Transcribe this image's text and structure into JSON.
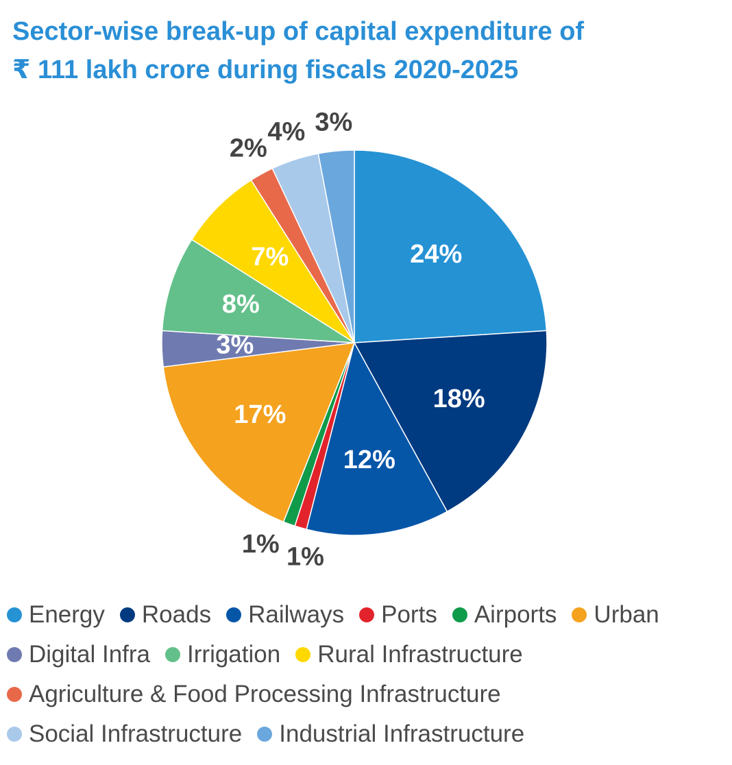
{
  "title_line1": "Sector-wise break-up of capital expenditure of",
  "title_line2": "₹ 111 lakh crore during fiscals 2020-2025",
  "chart_data": {
    "type": "pie",
    "title": "Sector-wise break-up of capital expenditure of ₹ 111 lakh crore during fiscals 2020-2025",
    "categories": [
      "Energy",
      "Roads",
      "Railways",
      "Ports",
      "Airports",
      "Urban",
      "Digital Infra",
      "Irrigation",
      "Rural Infrastructure",
      "Agriculture & Food Processing Infrastructure",
      "Social Infrastructure",
      "Industrial Infrastructure"
    ],
    "values": [
      24,
      18,
      12,
      1,
      1,
      17,
      3,
      8,
      7,
      2,
      4,
      3
    ],
    "labels": [
      "24%",
      "18%",
      "12%",
      "1%",
      "1%",
      "17%",
      "3%",
      "8%",
      "7%",
      "2%",
      "4%",
      "3%"
    ],
    "colors": [
      "#2592d4",
      "#003a80",
      "#0656a8",
      "#e3232b",
      "#0f9b4a",
      "#f5a21f",
      "#6f7bb0",
      "#63c08a",
      "#ffd800",
      "#e8694a",
      "#a8c9ea",
      "#6aa7dd"
    ],
    "label_inside": [
      true,
      true,
      true,
      false,
      false,
      true,
      true,
      true,
      true,
      false,
      false,
      false
    ],
    "legend_rows": [
      [
        0,
        1,
        2,
        3,
        4,
        5
      ],
      [
        6,
        7,
        8
      ],
      [
        9
      ],
      [
        10,
        11
      ]
    ]
  }
}
